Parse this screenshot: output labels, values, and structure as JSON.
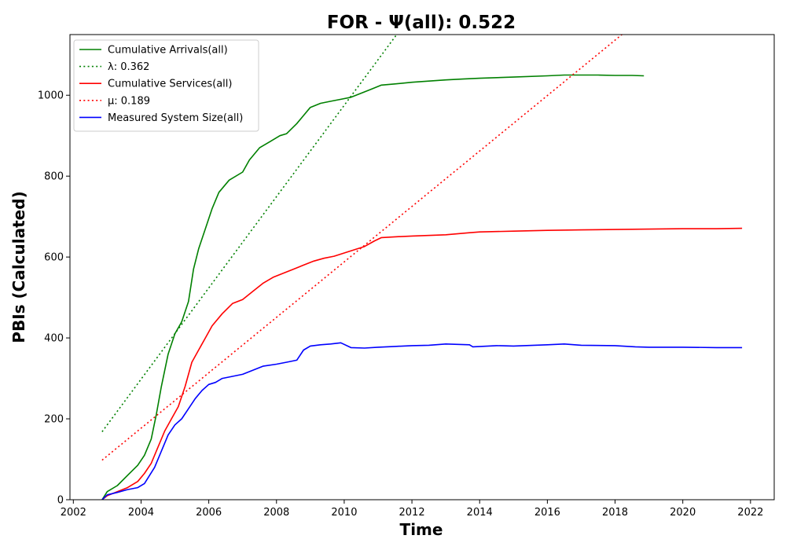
{
  "chart_data": {
    "type": "line",
    "title": "FOR -  Ψ(all): 0.522",
    "xlabel": "Time",
    "ylabel": "PBIs (Calculated)",
    "xlim": [
      2001.9,
      2022.7
    ],
    "ylim": [
      0,
      1150
    ],
    "xticks": [
      2002,
      2004,
      2006,
      2008,
      2010,
      2012,
      2014,
      2016,
      2018,
      2020,
      2022
    ],
    "yticks": [
      0,
      200,
      400,
      600,
      800,
      1000
    ],
    "grid": false,
    "legend_position": "top-left",
    "series": [
      {
        "name": "Cumulative Arrivals(all)",
        "style": "solid",
        "color": "#008000",
        "x": [
          2002.85,
          2003.0,
          2003.3,
          2003.6,
          2003.9,
          2004.1,
          2004.3,
          2004.45,
          2004.6,
          2004.8,
          2005.0,
          2005.2,
          2005.4,
          2005.55,
          2005.7,
          2005.9,
          2006.1,
          2006.3,
          2006.6,
          2007.0,
          2007.2,
          2007.5,
          2007.8,
          2008.1,
          2008.3,
          2008.6,
          2008.8,
          2009.0,
          2009.3,
          2009.6,
          2009.9,
          2010.2,
          2010.5,
          2010.8,
          2011.1,
          2011.5,
          2012.0,
          2012.5,
          2013.0,
          2013.5,
          2014.0,
          2015.0,
          2016.0,
          2016.5,
          2017.0,
          2017.5,
          2018.0,
          2018.5,
          2018.85
        ],
        "y": [
          0,
          20,
          35,
          60,
          85,
          110,
          150,
          210,
          280,
          360,
          410,
          440,
          490,
          570,
          620,
          670,
          720,
          760,
          790,
          810,
          840,
          870,
          885,
          900,
          905,
          930,
          950,
          970,
          980,
          985,
          990,
          995,
          1005,
          1015,
          1025,
          1028,
          1032,
          1035,
          1038,
          1040,
          1042,
          1045,
          1048,
          1050,
          1050,
          1050,
          1049,
          1049,
          1048
        ]
      },
      {
        "name": "λ: 0.362",
        "style": "dotted",
        "color": "#008000",
        "x": [
          2002.85,
          2011.55
        ],
        "y": [
          168,
          1150
        ]
      },
      {
        "name": "Cumulative Services(all)",
        "style": "solid",
        "color": "#ff0000",
        "x": [
          2002.85,
          2003.0,
          2003.3,
          2003.6,
          2003.9,
          2004.1,
          2004.3,
          2004.5,
          2004.7,
          2004.9,
          2005.1,
          2005.3,
          2005.5,
          2005.7,
          2005.9,
          2006.1,
          2006.4,
          2006.7,
          2007.0,
          2007.3,
          2007.6,
          2007.9,
          2008.2,
          2008.5,
          2008.8,
          2009.1,
          2009.4,
          2009.7,
          2010.0,
          2010.3,
          2010.6,
          2010.9,
          2011.1,
          2011.5,
          2012.0,
          2013.0,
          2013.7,
          2014.0,
          2015.0,
          2016.0,
          2017.0,
          2018.0,
          2019.0,
          2020.0,
          2021.0,
          2021.75
        ],
        "y": [
          0,
          10,
          20,
          30,
          45,
          65,
          90,
          130,
          170,
          200,
          230,
          280,
          340,
          370,
          400,
          430,
          460,
          485,
          495,
          515,
          535,
          550,
          560,
          570,
          580,
          590,
          597,
          602,
          610,
          618,
          626,
          640,
          648,
          650,
          652,
          655,
          660,
          662,
          664,
          666,
          667,
          668,
          669,
          670,
          670,
          671
        ]
      },
      {
        "name": "μ: 0.189",
        "style": "dotted",
        "color": "#ff0000",
        "x": [
          2002.85,
          2018.2
        ],
        "y": [
          98,
          1150
        ]
      },
      {
        "name": "Measured System Size(all)",
        "style": "solid",
        "color": "#0000ff",
        "x": [
          2002.85,
          2003.0,
          2003.3,
          2003.6,
          2003.9,
          2004.1,
          2004.4,
          2004.6,
          2004.8,
          2005.0,
          2005.2,
          2005.4,
          2005.6,
          2005.8,
          2006.0,
          2006.2,
          2006.4,
          2006.7,
          2007.0,
          2007.3,
          2007.6,
          2008.0,
          2008.3,
          2008.6,
          2008.8,
          2009.0,
          2009.3,
          2009.6,
          2009.9,
          2010.2,
          2010.6,
          2011.0,
          2011.5,
          2012.0,
          2012.5,
          2013.0,
          2013.7,
          2013.8,
          2014.5,
          2015.0,
          2016.0,
          2016.5,
          2017.0,
          2018.0,
          2018.6,
          2019.0,
          2020.0,
          2021.0,
          2021.75
        ],
        "y": [
          0,
          12,
          18,
          25,
          30,
          40,
          80,
          120,
          160,
          185,
          200,
          225,
          250,
          270,
          285,
          290,
          300,
          305,
          310,
          320,
          330,
          335,
          340,
          345,
          370,
          380,
          383,
          385,
          388,
          376,
          375,
          377,
          379,
          381,
          382,
          385,
          383,
          378,
          381,
          380,
          383,
          385,
          382,
          381,
          378,
          377,
          377,
          376,
          376
        ]
      }
    ]
  }
}
